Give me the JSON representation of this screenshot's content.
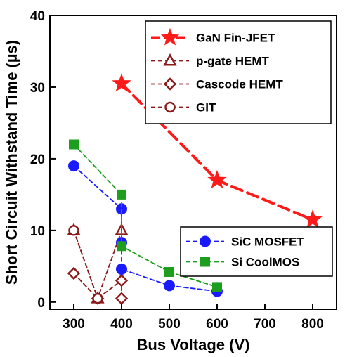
{
  "chart_data": {
    "type": "line",
    "xlabel": "Bus Voltage (V)",
    "ylabel": "Short Circuit Withstand Time (µs)",
    "xlim": [
      250,
      850
    ],
    "ylim": [
      -1,
      40
    ],
    "x_ticks": [
      300,
      400,
      500,
      600,
      700,
      800
    ],
    "y_ticks": [
      0,
      10,
      20,
      30,
      40
    ],
    "grid": false,
    "series": [
      {
        "name": "GaN Fin-JFET",
        "color": "#ff1a1a",
        "marker": "star",
        "dash": "dashed-thick",
        "x": [
          400,
          600,
          800
        ],
        "y": [
          30.5,
          17,
          11.5
        ]
      },
      {
        "name": "p-gate HEMT",
        "color": "#8b1a1a",
        "marker": "triangle-open",
        "dash": "dashed",
        "x": [
          300,
          350,
          400
        ],
        "y": [
          10,
          0.5,
          10
        ]
      },
      {
        "name": "Cascode HEMT",
        "color": "#8b1a1a",
        "marker": "diamond-open",
        "dash": "dashed",
        "x": [
          300,
          350,
          400,
          400
        ],
        "y": [
          4,
          0.5,
          3,
          0.5
        ]
      },
      {
        "name": "GIT",
        "color": "#8b1a1a",
        "marker": "circle-open",
        "dash": "dashed",
        "x": [
          300,
          350
        ],
        "y": [
          10,
          0.5
        ]
      },
      {
        "name": "SiC MOSFET",
        "color": "#1a1aff",
        "marker": "circle-filled",
        "dash": "dashed",
        "x": [
          300,
          400,
          400,
          400,
          500,
          600
        ],
        "y": [
          19,
          13,
          8.3,
          4.6,
          2.3,
          1.5
        ]
      },
      {
        "name": "Si CoolMOS",
        "color": "#1e9e1e",
        "marker": "square-filled",
        "dash": "dashed",
        "x": [
          300,
          400,
          400,
          500,
          600
        ],
        "y": [
          22,
          15,
          7.8,
          4.2,
          2.1
        ]
      }
    ],
    "legends": [
      {
        "placement": "top-right",
        "entries": [
          "GaN Fin-JFET",
          "p-gate HEMT",
          "Cascode HEMT",
          "GIT"
        ]
      },
      {
        "placement": "lower-right",
        "entries": [
          "SiC MOSFET",
          "Si CoolMOS"
        ]
      }
    ]
  }
}
